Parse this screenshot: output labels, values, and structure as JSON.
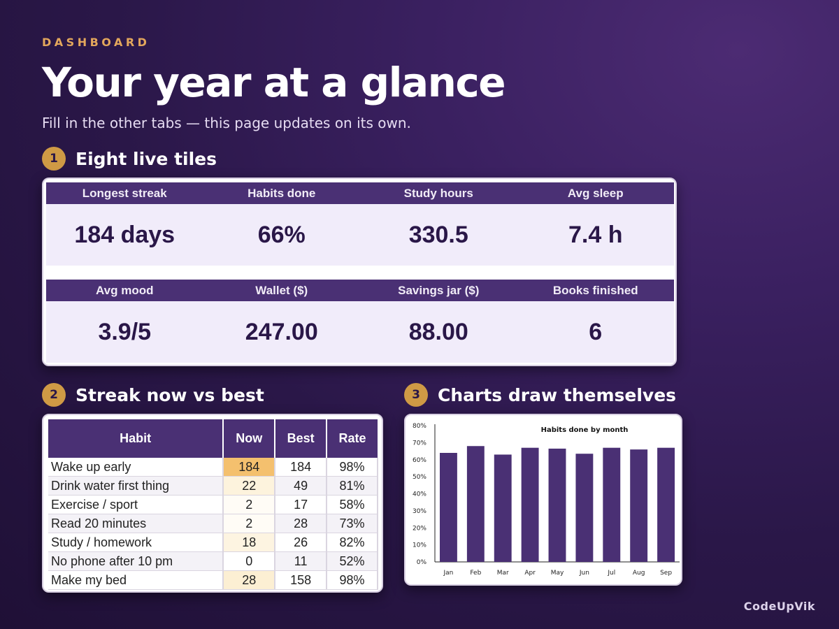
{
  "header": {
    "eyebrow": "DASHBOARD",
    "title": "Your year at a glance",
    "subtitle": "Fill in the other tabs — this page updates on its own."
  },
  "sections": [
    {
      "number": "1",
      "title": "Eight live tiles"
    },
    {
      "number": "2",
      "title": "Streak now vs best"
    },
    {
      "number": "3",
      "title": "Charts draw themselves"
    }
  ],
  "tiles": [
    {
      "label": "Longest streak",
      "value": "184 days"
    },
    {
      "label": "Habits done",
      "value": "66%"
    },
    {
      "label": "Study hours",
      "value": "330.5"
    },
    {
      "label": "Avg sleep",
      "value": "7.4 h"
    },
    {
      "label": "Avg mood",
      "value": "3.9/5"
    },
    {
      "label": "Wallet ($)",
      "value": "247.00"
    },
    {
      "label": "Savings jar ($)",
      "value": "88.00"
    },
    {
      "label": "Books finished",
      "value": "6"
    }
  ],
  "streak_table": {
    "headers": [
      "Habit",
      "Now",
      "Best",
      "Rate"
    ],
    "rows": [
      {
        "habit": "Wake up early",
        "now": "184",
        "best": "184",
        "rate": "98%",
        "now_fill": "#f4c06e"
      },
      {
        "habit": "Drink water first thing",
        "now": "22",
        "best": "49",
        "rate": "81%",
        "now_fill": "#fdf3dd"
      },
      {
        "habit": "Exercise / sport",
        "now": "2",
        "best": "17",
        "rate": "58%",
        "now_fill": "#fffcf6"
      },
      {
        "habit": "Read 20 minutes",
        "now": "2",
        "best": "28",
        "rate": "73%",
        "now_fill": "#fffcf6"
      },
      {
        "habit": "Study / homework",
        "now": "18",
        "best": "26",
        "rate": "82%",
        "now_fill": "#fdf4e1"
      },
      {
        "habit": "No phone after 10 pm",
        "now": "0",
        "best": "11",
        "rate": "52%",
        "now_fill": "#ffffff"
      },
      {
        "habit": "Make my bed",
        "now": "28",
        "best": "158",
        "rate": "98%",
        "now_fill": "#fcefd3"
      }
    ]
  },
  "chart_data": {
    "type": "bar",
    "title": "Habits done by month",
    "categories": [
      "Jan",
      "Feb",
      "Mar",
      "Apr",
      "May",
      "Jun",
      "Jul",
      "Aug",
      "Sep"
    ],
    "values": [
      64,
      68,
      63,
      67,
      66.5,
      63.5,
      67,
      66,
      67
    ],
    "ylim": [
      0,
      80
    ],
    "yticks": [
      "0%",
      "10%",
      "20%",
      "30%",
      "40%",
      "50%",
      "60%",
      "70%",
      "80%"
    ],
    "bar_color": "#4a3074",
    "grid": false
  },
  "brand": "CodeUpVik",
  "colors": {
    "accent": "#cf9a45",
    "header_purple": "#4a3074",
    "tile_bg": "#f1ecfa"
  }
}
